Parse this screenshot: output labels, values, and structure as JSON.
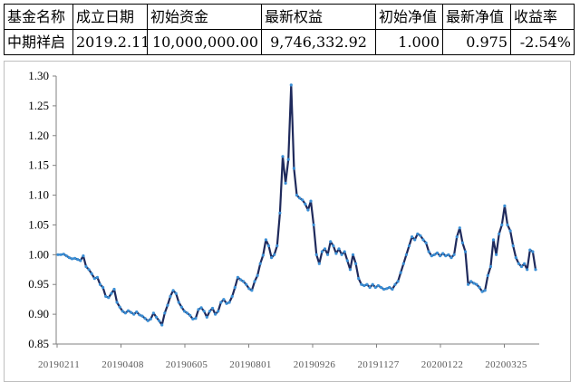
{
  "table": {
    "headers": [
      "基金名称",
      "成立日期",
      "初始资金",
      "最新权益",
      "初始净值",
      "最新净值",
      "收益率"
    ],
    "row": [
      "中期祥启",
      "2019.2.11",
      "10,000,000.00",
      "9,746,332.92",
      "1.000",
      "0.975",
      "-2.54%"
    ]
  },
  "chart_data": {
    "type": "line",
    "title": "",
    "xlabel": "",
    "ylabel": "",
    "ylim": [
      0.85,
      1.3
    ],
    "yticks": [
      "0.85",
      "0.90",
      "0.95",
      "1.00",
      "1.05",
      "1.10",
      "1.15",
      "1.20",
      "1.25",
      "1.30"
    ],
    "xticks": [
      "20190211",
      "20190408",
      "20190605",
      "20190801",
      "20190926",
      "20191127",
      "20200122",
      "20200325"
    ],
    "grid": false,
    "legend": "none",
    "line_color": "#1f2a5c",
    "marker_color": "#3a8fd6",
    "series": [
      {
        "values": [
          1.0,
          1.0,
          1.001,
          0.998,
          0.995,
          0.993,
          0.994,
          0.992,
          0.99,
          0.998,
          0.98,
          0.975,
          0.968,
          0.96,
          0.962,
          0.95,
          0.945,
          0.93,
          0.928,
          0.935,
          0.942,
          0.92,
          0.912,
          0.905,
          0.902,
          0.906,
          0.903,
          0.9,
          0.904,
          0.899,
          0.897,
          0.893,
          0.889,
          0.892,
          0.902,
          0.895,
          0.889,
          0.882,
          0.902,
          0.915,
          0.93,
          0.94,
          0.935,
          0.92,
          0.912,
          0.905,
          0.902,
          0.898,
          0.892,
          0.893,
          0.908,
          0.911,
          0.905,
          0.895,
          0.905,
          0.91,
          0.9,
          0.905,
          0.92,
          0.925,
          0.918,
          0.92,
          0.93,
          0.945,
          0.962,
          0.958,
          0.955,
          0.95,
          0.943,
          0.94,
          0.955,
          0.965,
          0.985,
          0.999,
          1.025,
          1.015,
          0.995,
          1.0,
          1.015,
          1.07,
          1.165,
          1.12,
          1.16,
          1.285,
          1.145,
          1.1,
          1.095,
          1.092,
          1.085,
          1.075,
          1.09,
          1.05,
          1.0,
          0.985,
          1.005,
          1.01,
          1.0,
          1.022,
          1.015,
          1.002,
          1.01,
          1.0,
          1.005,
          0.99,
          0.975,
          1.0,
          0.985,
          0.96,
          0.95,
          0.948,
          0.95,
          0.945,
          0.95,
          0.945,
          0.948,
          0.945,
          0.942,
          0.943,
          0.945,
          0.942,
          0.95,
          0.955,
          0.97,
          0.985,
          1.0,
          1.015,
          1.03,
          1.025,
          1.035,
          1.032,
          1.025,
          1.02,
          1.005,
          0.998,
          1.0,
          1.003,
          0.998,
          1.002,
          0.998,
          1.0,
          0.995,
          1.0,
          1.03,
          1.045,
          1.02,
          1.005,
          0.95,
          0.955,
          0.952,
          0.95,
          0.945,
          0.938,
          0.94,
          0.965,
          0.98,
          1.025,
          1.0,
          1.035,
          1.05,
          1.082,
          1.05,
          1.04,
          1.015,
          0.995,
          0.985,
          0.98,
          0.985,
          0.975,
          1.008,
          1.005,
          0.975
        ]
      }
    ]
  }
}
